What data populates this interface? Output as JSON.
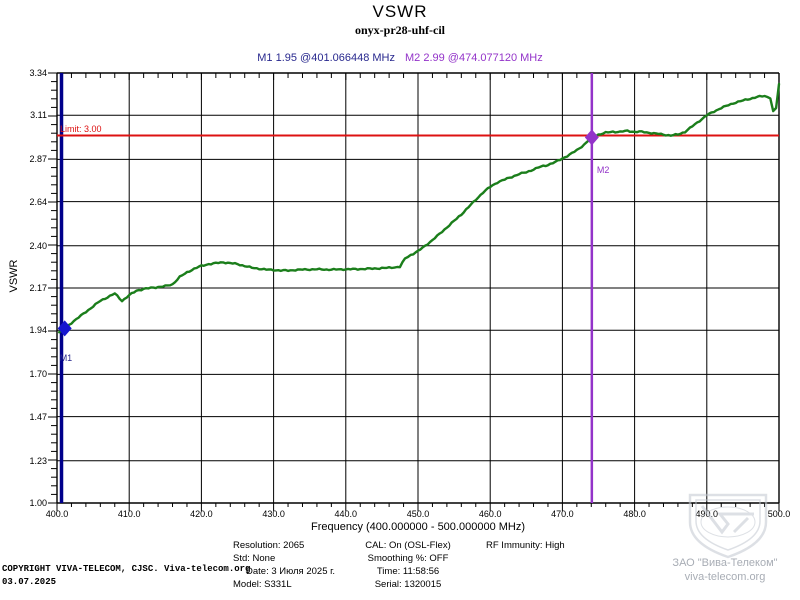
{
  "title": "VSWR",
  "subtitle": "onyx-pr28-uhf-cil",
  "markers_readout": {
    "m1": "M1  1.95 @401.066448 MHz",
    "m2": "M2  2.99 @474.077120 MHz"
  },
  "chart_data": {
    "type": "line",
    "title": "VSWR",
    "xlabel": "Frequency (400.000000 - 500.000000 MHz)",
    "ylabel": "VSWR",
    "xlim": [
      400,
      500
    ],
    "ylim": [
      1.0,
      3.34
    ],
    "x_ticks": [
      "400.0",
      "410.0",
      "420.0",
      "430.0",
      "440.0",
      "450.0",
      "460.0",
      "470.0",
      "480.0",
      "490.0",
      "500.0"
    ],
    "y_ticks": [
      "3.34",
      "3.11",
      "2.87",
      "2.64",
      "2.40",
      "2.17",
      "1.94",
      "1.70",
      "1.47",
      "1.23",
      "1.00"
    ],
    "grid": true,
    "limit": {
      "value": 3.0,
      "label": "Limit: 3.00",
      "color": "#dd1111"
    },
    "series": [
      {
        "name": "VSWR trace",
        "color": "#1b7e1b",
        "points": [
          [
            400.3,
            1.93
          ],
          [
            401.07,
            1.95
          ],
          [
            402,
            1.98
          ],
          [
            403,
            2.01
          ],
          [
            404,
            2.04
          ],
          [
            405,
            2.07
          ],
          [
            406,
            2.1
          ],
          [
            407,
            2.12
          ],
          [
            408,
            2.14
          ],
          [
            409,
            2.1
          ],
          [
            410,
            2.13
          ],
          [
            411,
            2.155
          ],
          [
            412,
            2.165
          ],
          [
            413,
            2.17
          ],
          [
            414,
            2.175
          ],
          [
            415,
            2.18
          ],
          [
            416,
            2.19
          ],
          [
            417,
            2.23
          ],
          [
            418,
            2.255
          ],
          [
            419,
            2.275
          ],
          [
            420,
            2.29
          ],
          [
            421,
            2.3
          ],
          [
            422,
            2.305
          ],
          [
            423,
            2.31
          ],
          [
            424,
            2.305
          ],
          [
            425,
            2.3
          ],
          [
            426,
            2.29
          ],
          [
            427,
            2.28
          ],
          [
            428,
            2.275
          ],
          [
            429,
            2.27
          ],
          [
            430,
            2.268
          ],
          [
            431,
            2.265
          ],
          [
            432,
            2.265
          ],
          [
            433,
            2.268
          ],
          [
            434,
            2.27
          ],
          [
            436,
            2.272
          ],
          [
            438,
            2.27
          ],
          [
            440,
            2.272
          ],
          [
            442,
            2.273
          ],
          [
            444,
            2.276
          ],
          [
            446,
            2.28
          ],
          [
            447.5,
            2.285
          ],
          [
            448.2,
            2.33
          ],
          [
            449,
            2.35
          ],
          [
            450,
            2.37
          ],
          [
            451,
            2.4
          ],
          [
            452,
            2.43
          ],
          [
            453,
            2.465
          ],
          [
            454,
            2.5
          ],
          [
            455,
            2.535
          ],
          [
            456,
            2.57
          ],
          [
            457,
            2.61
          ],
          [
            458,
            2.65
          ],
          [
            459,
            2.69
          ],
          [
            460,
            2.72
          ],
          [
            461,
            2.745
          ],
          [
            462,
            2.76
          ],
          [
            463,
            2.775
          ],
          [
            464,
            2.79
          ],
          [
            465,
            2.8
          ],
          [
            466,
            2.815
          ],
          [
            467,
            2.83
          ],
          [
            468,
            2.84
          ],
          [
            469,
            2.855
          ],
          [
            470,
            2.875
          ],
          [
            471,
            2.895
          ],
          [
            472,
            2.92
          ],
          [
            473,
            2.95
          ],
          [
            474.08,
            2.99
          ],
          [
            475,
            3.005
          ],
          [
            476,
            3.015
          ],
          [
            477,
            3.02
          ],
          [
            478,
            3.02
          ],
          [
            479,
            3.025
          ],
          [
            480,
            3.02
          ],
          [
            481,
            3.02
          ],
          [
            482,
            3.015
          ],
          [
            483,
            3.01
          ],
          [
            484,
            3.005
          ],
          [
            485,
            3.0
          ],
          [
            486,
            3.005
          ],
          [
            487,
            3.02
          ],
          [
            488,
            3.05
          ],
          [
            489,
            3.08
          ],
          [
            490,
            3.11
          ],
          [
            491,
            3.13
          ],
          [
            492,
            3.15
          ],
          [
            493,
            3.165
          ],
          [
            494,
            3.18
          ],
          [
            495,
            3.19
          ],
          [
            496,
            3.2
          ],
          [
            497,
            3.21
          ],
          [
            498,
            3.215
          ],
          [
            498.8,
            3.205
          ],
          [
            499.2,
            3.13
          ],
          [
            499.6,
            3.15
          ],
          [
            500,
            3.28
          ]
        ]
      }
    ],
    "markers": [
      {
        "id": "M1",
        "freq": 401.066448,
        "value": 1.95,
        "color": "#1616cf",
        "label_color": "#28288e",
        "vertical_line": false
      },
      {
        "id": "M2",
        "freq": 474.07712,
        "value": 2.99,
        "color": "#9333c9",
        "label_color": "#9333c9",
        "vertical_line": true
      }
    ],
    "axis_color": "#00008b"
  },
  "info_panel": {
    "col1": [
      "Resolution: 2065",
      "Std: None",
      "Date: 3 Июля 2025 г.",
      "Model: S331L"
    ],
    "col2": [
      "CAL: On (OSL-Flex)",
      "Smoothing %:  OFF",
      "Time: 11:58:56",
      "Serial: 1320015"
    ],
    "col3": [
      "RF Immunity: High"
    ]
  },
  "copyright": {
    "line1": "COPYRIGHT VIVA-TELECOM, CJSC. Viva-telecom.org",
    "line2": "03.07.2025"
  },
  "branding": {
    "company": "ЗАО \"Вива-Телеком\"",
    "website": "viva-telecom.org",
    "logo": "viva-telecom-shield-logo"
  }
}
